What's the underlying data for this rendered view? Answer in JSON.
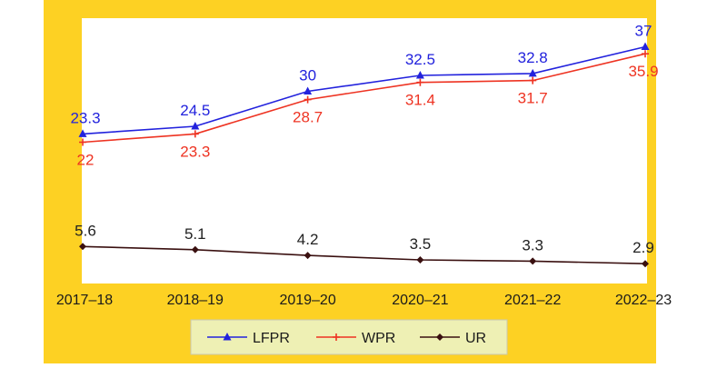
{
  "chart_data": {
    "type": "line",
    "categories": [
      "2017–18",
      "2018–19",
      "2019–20",
      "2020–21",
      "2021–22",
      "2022–23"
    ],
    "series": [
      {
        "name": "LFPR",
        "values": [
          23.3,
          24.5,
          30,
          32.5,
          32.8,
          37
        ],
        "labels": [
          "23.3",
          "24.5",
          "30",
          "32.5",
          "32.8",
          "37"
        ],
        "color": "#2222dd",
        "marker": "triangle"
      },
      {
        "name": "WPR",
        "values": [
          22,
          23.3,
          28.7,
          31.4,
          31.7,
          35.9
        ],
        "labels": [
          "22",
          "23.3",
          "28.7",
          "31.4",
          "31.7",
          "35.9"
        ],
        "color": "#ee3322",
        "marker": "plus"
      },
      {
        "name": "UR",
        "values": [
          5.6,
          5.1,
          4.2,
          3.5,
          3.3,
          2.9
        ],
        "labels": [
          "5.6",
          "5.1",
          "4.2",
          "3.5",
          "3.3",
          "2.9"
        ],
        "color": "#3a1010",
        "marker": "diamond"
      }
    ],
    "ylim": [
      0,
      40
    ],
    "grid": false,
    "legend_position": "bottom",
    "colors": {
      "frame_background": "#fdd123",
      "plot_background": "#ffffff",
      "legend_background": "#eef0b4"
    }
  }
}
